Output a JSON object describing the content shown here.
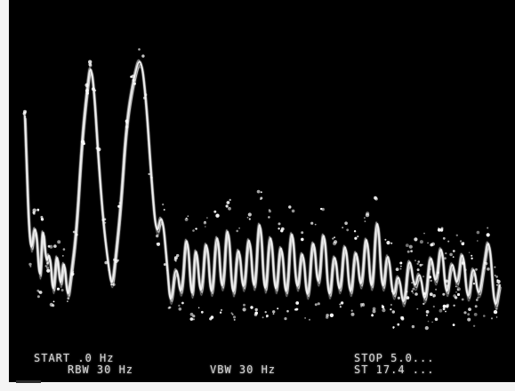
{
  "labels": {
    "start": "START .0 Hz",
    "rbw": "RBW 30 Hz",
    "vbw": "VBW 30 Hz",
    "stop": "STOP 5.0...",
    "sweep": "ST 17.4 ..."
  },
  "colors": {
    "screen_background": "#000000",
    "trace": "#f2f2f2"
  }
}
